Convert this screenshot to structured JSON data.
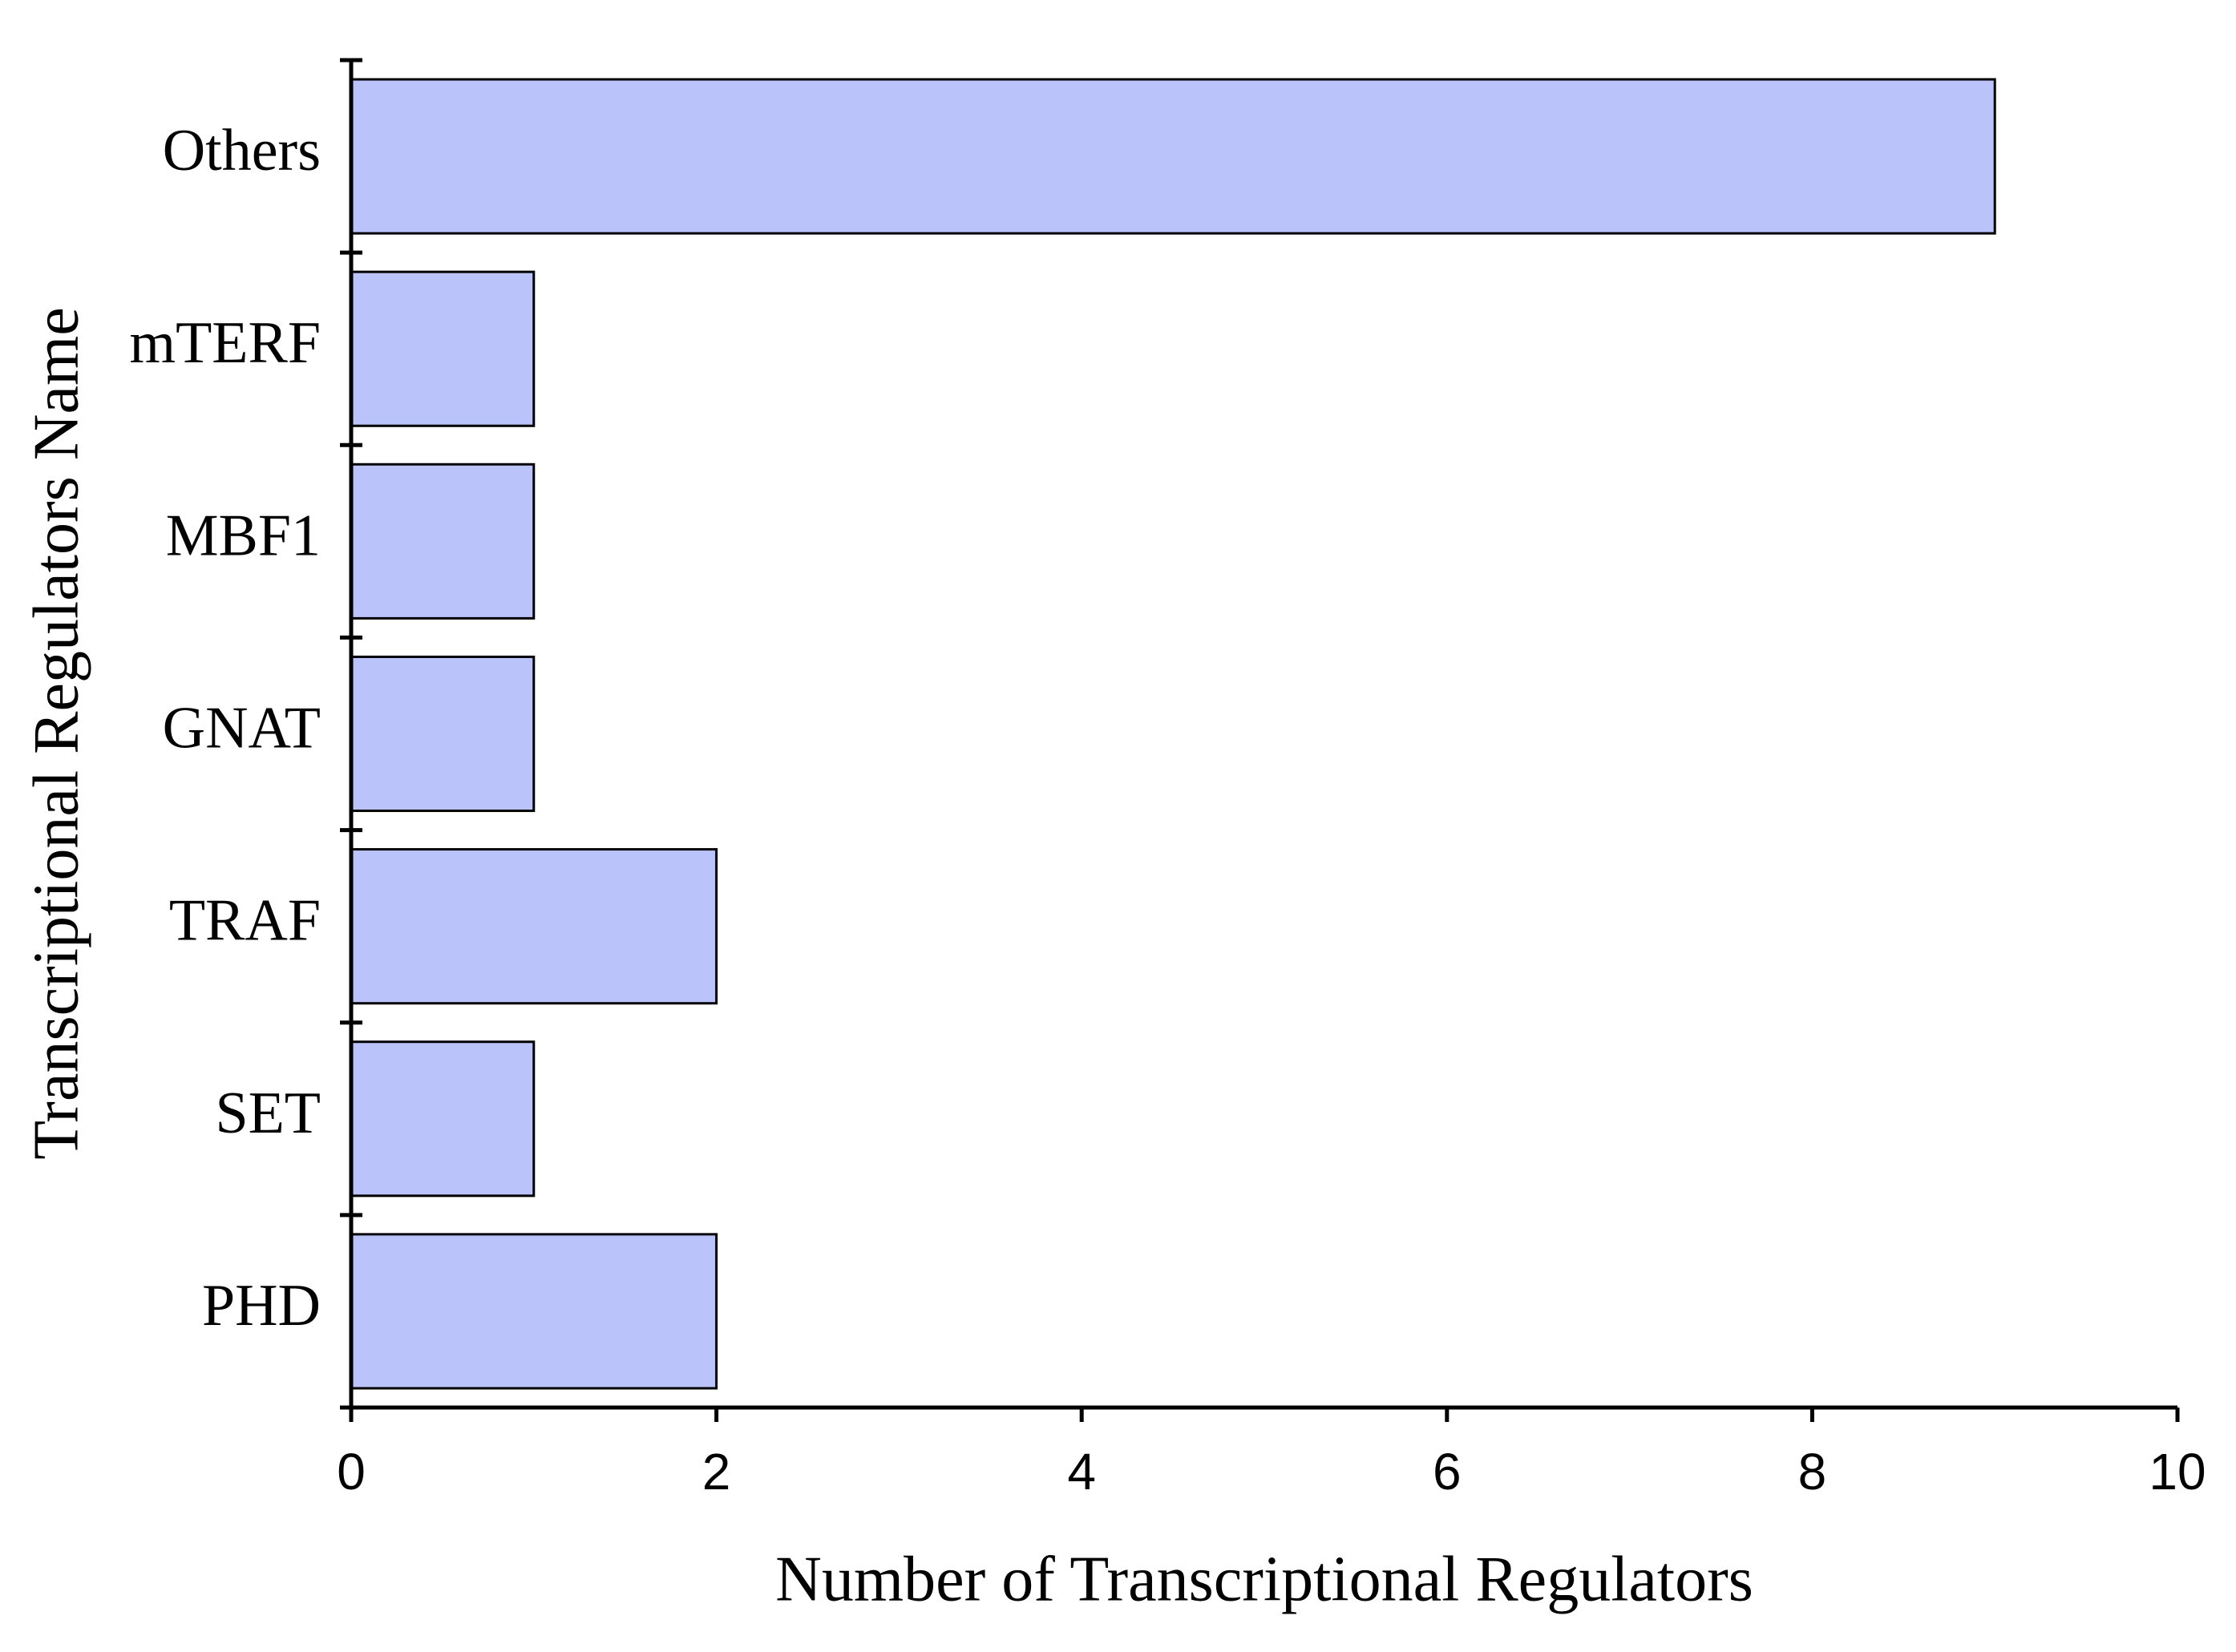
{
  "chart_data": {
    "type": "barh",
    "x_label": "Number of Transcriptional Regulators",
    "y_label": "Transcriptional Regulators Name",
    "categories": [
      "PHD",
      "SET",
      "TRAF",
      "GNAT",
      "MBF1",
      "mTERF",
      "Others"
    ],
    "values": [
      2,
      1,
      2,
      1,
      1,
      1,
      9
    ],
    "color": "#bbc3fb",
    "xlim": [
      0,
      10
    ],
    "xticks": [
      0,
      2,
      4,
      6,
      8,
      10
    ],
    "grid": false
  }
}
